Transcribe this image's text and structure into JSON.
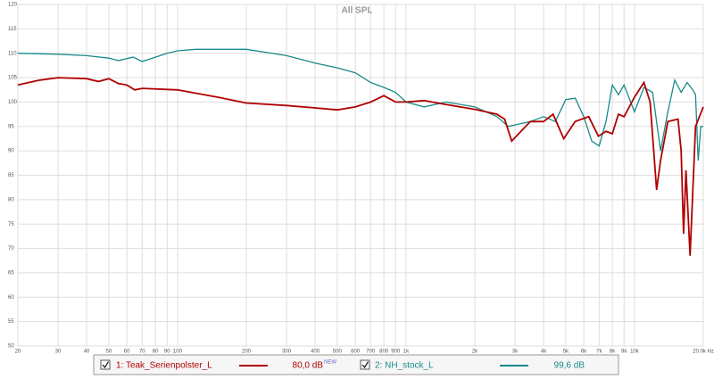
{
  "chart_data": {
    "type": "line",
    "title": "All SPL",
    "xscale": "log",
    "grid": true,
    "xlim": [
      20,
      20000
    ],
    "ylim": [
      50,
      120
    ],
    "yticks": [
      50,
      55,
      60,
      65,
      70,
      75,
      80,
      85,
      90,
      95,
      100,
      105,
      110,
      115,
      120
    ],
    "xticks": [
      20,
      30,
      40,
      50,
      60,
      70,
      80,
      90,
      100,
      200,
      300,
      400,
      500,
      600,
      700,
      800,
      900,
      {
        "value": 1000,
        "label": "1k"
      },
      {
        "value": 2000,
        "label": "2k"
      },
      {
        "value": 3000,
        "label": "3k"
      },
      {
        "value": 4000,
        "label": "4k"
      },
      {
        "value": 5000,
        "label": "5k"
      },
      {
        "value": 6000,
        "label": "6k"
      },
      {
        "value": 7000,
        "label": "7k"
      },
      {
        "value": 8000,
        "label": "8k"
      },
      {
        "value": 9000,
        "label": "9k"
      },
      {
        "value": 10000,
        "label": "10k"
      },
      {
        "value": 20000,
        "label": "20.0k Hz"
      }
    ],
    "series": [
      {
        "name": "1: Teak_Serienpolster_L",
        "color": "#b00000",
        "level_label": "80,0 dB",
        "badge": "NEW",
        "x": [
          20,
          25,
          30,
          40,
          45,
          50,
          55,
          60,
          65,
          70,
          100,
          150,
          200,
          300,
          400,
          500,
          600,
          700,
          800,
          900,
          1000,
          1200,
          1500,
          2000,
          2500,
          2700,
          2900,
          3500,
          4000,
          4400,
          4900,
          5500,
          6300,
          6950,
          7500,
          8000,
          8500,
          9000,
          10000,
          11000,
          11700,
          12500,
          13000,
          14000,
          15500,
          16000,
          16400,
          16800,
          17500,
          18500,
          20000
        ],
        "values": [
          103.5,
          104.5,
          105,
          104.8,
          104.2,
          104.8,
          103.8,
          103.5,
          102.5,
          102.8,
          102.5,
          101,
          99.8,
          99.3,
          98.8,
          98.4,
          99,
          100,
          101.3,
          100,
          100,
          100.3,
          99.5,
          98.5,
          97.5,
          96.5,
          92,
          96,
          96,
          97.5,
          92.5,
          96,
          97,
          93,
          94,
          93.5,
          97.5,
          97,
          101,
          104,
          100,
          82,
          88,
          96,
          96.5,
          90,
          73,
          86,
          68.5,
          95,
          99
        ]
      },
      {
        "name": "2: NH_stock_L",
        "color": "#1a8a8a",
        "level_label": "99,6 dB",
        "x": [
          20,
          30,
          40,
          50,
          55,
          64,
          70,
          90,
          100,
          120,
          200,
          300,
          400,
          500,
          600,
          700,
          800,
          900,
          1000,
          1200,
          1500,
          2000,
          2500,
          2800,
          3500,
          4000,
          4500,
          5000,
          5500,
          6000,
          6500,
          7000,
          7500,
          8000,
          8500,
          9000,
          10000,
          11000,
          12000,
          13000,
          14000,
          15000,
          16000,
          17000,
          18000,
          18500,
          19000,
          19500,
          20000
        ],
        "values": [
          110,
          109.8,
          109.5,
          109,
          108.5,
          109.2,
          108.3,
          110,
          110.5,
          110.8,
          110.8,
          109.5,
          108,
          107,
          106,
          104,
          103,
          102,
          100,
          99,
          100,
          99,
          97,
          95,
          96,
          97,
          96,
          100.5,
          100.8,
          97,
          92,
          91,
          96,
          103.5,
          101.5,
          103.5,
          98,
          103,
          102,
          90,
          98,
          104.5,
          102,
          104,
          102.5,
          101.5,
          88,
          95,
          95
        ]
      }
    ]
  }
}
